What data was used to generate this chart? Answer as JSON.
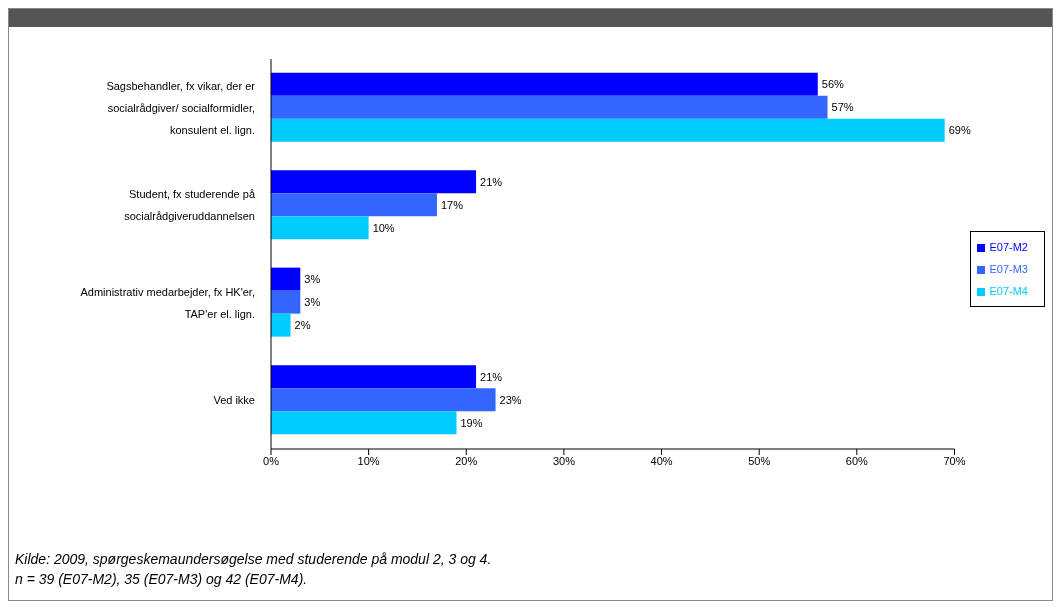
{
  "chart_data": {
    "type": "bar",
    "orientation": "horizontal",
    "categories": [
      "Sagsbehandler, fx vikar, der er socialrådgiver/ socialformidler, konsulent el. lign.",
      "Student, fx studerende på socialrådgiveruddannelsen",
      "Administrativ medarbejder, fx HK'er, TAP'er el. lign.",
      "Ved ikke"
    ],
    "series": [
      {
        "name": "E07-M2",
        "color": "#0000ff",
        "values": [
          56,
          21,
          3,
          21
        ],
        "value_labels": [
          "56%",
          "21%",
          "3%",
          "21%"
        ]
      },
      {
        "name": "E07-M3",
        "color": "#3366ff",
        "values": [
          57,
          17,
          3,
          23
        ],
        "value_labels": [
          "57%",
          "17%",
          "3%",
          "23%"
        ]
      },
      {
        "name": "E07-M4",
        "color": "#00ccff",
        "values": [
          69,
          10,
          2,
          19
        ],
        "value_labels": [
          "69%",
          "10%",
          "2%",
          "19%"
        ]
      }
    ],
    "xlim": [
      0,
      70
    ],
    "xticks": [
      {
        "value": 0,
        "label": "0%"
      },
      {
        "value": 10,
        "label": "10%"
      },
      {
        "value": 20,
        "label": "20%"
      },
      {
        "value": 30,
        "label": "30%"
      },
      {
        "value": 40,
        "label": "40%"
      },
      {
        "value": 50,
        "label": "50%"
      },
      {
        "value": 60,
        "label": "60%"
      },
      {
        "value": 70,
        "label": "70%"
      }
    ],
    "grid": false,
    "legend": "right",
    "annotations": [
      "Kilde: 2009, spørgeskemaundersøgelse med studerende på modul  2, 3 og 4.",
      "n = 39 (E07-M2), 35 (E07-M3) og 42 (E07-M4)."
    ]
  }
}
